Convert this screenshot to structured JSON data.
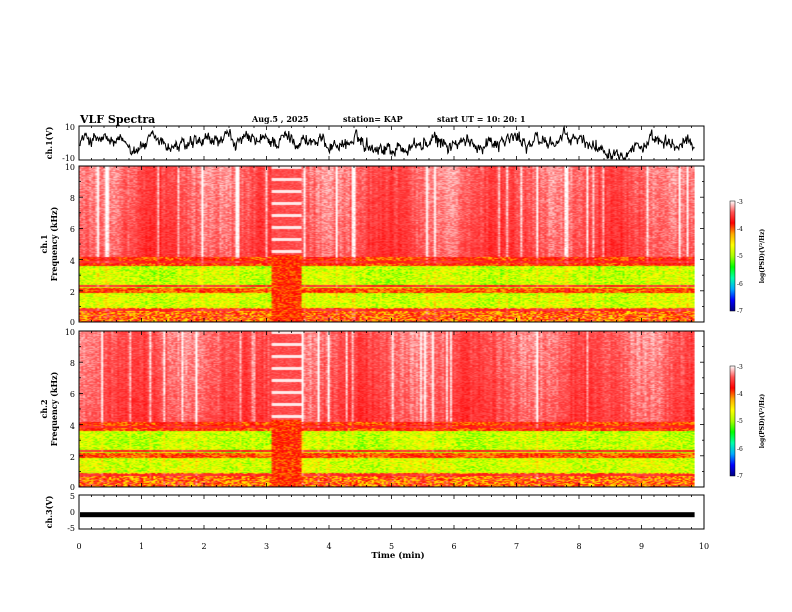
{
  "chart_data": {
    "type": "heatmap",
    "title": "VLF Spectra",
    "header": {
      "date": "Aug.5  , 2025",
      "station": "station= KAP",
      "start": "start  UT  =    10: 20: 1"
    },
    "xlabel": "Time  (min)",
    "xlim": [
      0,
      10
    ],
    "xticks": [
      "0",
      "1",
      "2",
      "3",
      "4",
      "5",
      "6",
      "7",
      "8",
      "9",
      "10"
    ],
    "panels": [
      {
        "name": "ch1-waveform",
        "type": "line",
        "ylabel": "ch.1(V)",
        "ylim": [
          -10,
          10
        ],
        "yticks": [
          "10",
          "-10"
        ],
        "data_end_min": 9.85
      },
      {
        "name": "ch1-spectrogram",
        "type": "heatmap",
        "ylabel_top": "ch.1",
        "ylabel": "Frequency  (kHz)",
        "ylim": [
          0,
          10
        ],
        "yticks": [
          "10",
          "8",
          "6",
          "4",
          "2",
          "0"
        ],
        "data_end_min": 9.85,
        "gap_min": [
          3.05,
          3.55
        ]
      },
      {
        "name": "ch2-spectrogram",
        "type": "heatmap",
        "ylabel_top": "ch.2",
        "ylabel": "Frequency  (kHz)",
        "ylim": [
          0,
          10
        ],
        "yticks": [
          "10",
          "8",
          "6",
          "4",
          "2",
          "0"
        ],
        "data_end_min": 9.85,
        "gap_min": [
          3.05,
          3.55
        ]
      },
      {
        "name": "ch3-waveform",
        "type": "line",
        "ylabel": "ch.3(V)",
        "ylim": [
          -5,
          5
        ],
        "yticks": [
          "5",
          "0",
          "-5"
        ],
        "level": -0.8,
        "data_end_min": 9.85
      }
    ],
    "colorbar": {
      "label": "log(PSD)(V²/Hz)",
      "range": [
        -7,
        -3
      ],
      "ticks": [
        "-3",
        "-4",
        "-5",
        "-6",
        "-7"
      ],
      "colors": [
        "#000080",
        "#0000ff",
        "#00aaff",
        "#00ffaa",
        "#00ff00",
        "#aaff00",
        "#ffff00",
        "#ffaa00",
        "#ff0000",
        "#ff5555",
        "#ffffff"
      ]
    }
  }
}
